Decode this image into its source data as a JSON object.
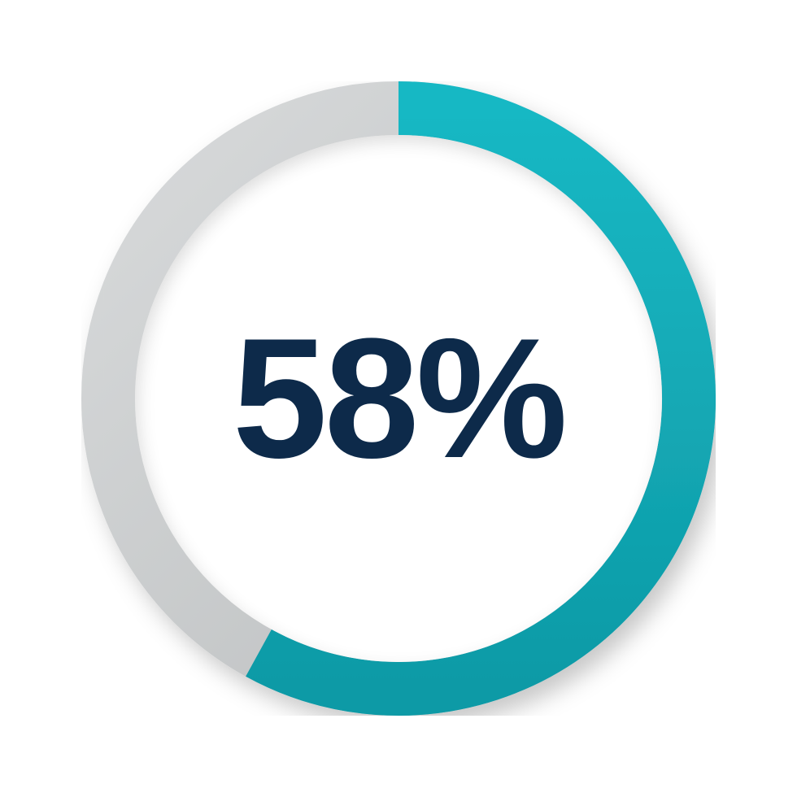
{
  "gauge": {
    "type": "radial-progress",
    "value": 58,
    "display_text": "58%",
    "progress_color": "#18b8c4",
    "progress_color_dark": "#0e9aa6",
    "track_color": "#b9bcbd",
    "track_color_light": "#d8dadb",
    "center_fill": "#ffffff",
    "text_color": "#0d2a4a",
    "outer_radius": 390,
    "ring_thickness": 66,
    "inner_shadow_color": "rgba(0,0,0,0.28)",
    "drop_shadow_color": "rgba(0,0,0,0.22)",
    "label_fontsize": 210,
    "label_fontweight": 800,
    "background": "transparent",
    "start_angle_deg": 0,
    "direction": "clockwise"
  }
}
